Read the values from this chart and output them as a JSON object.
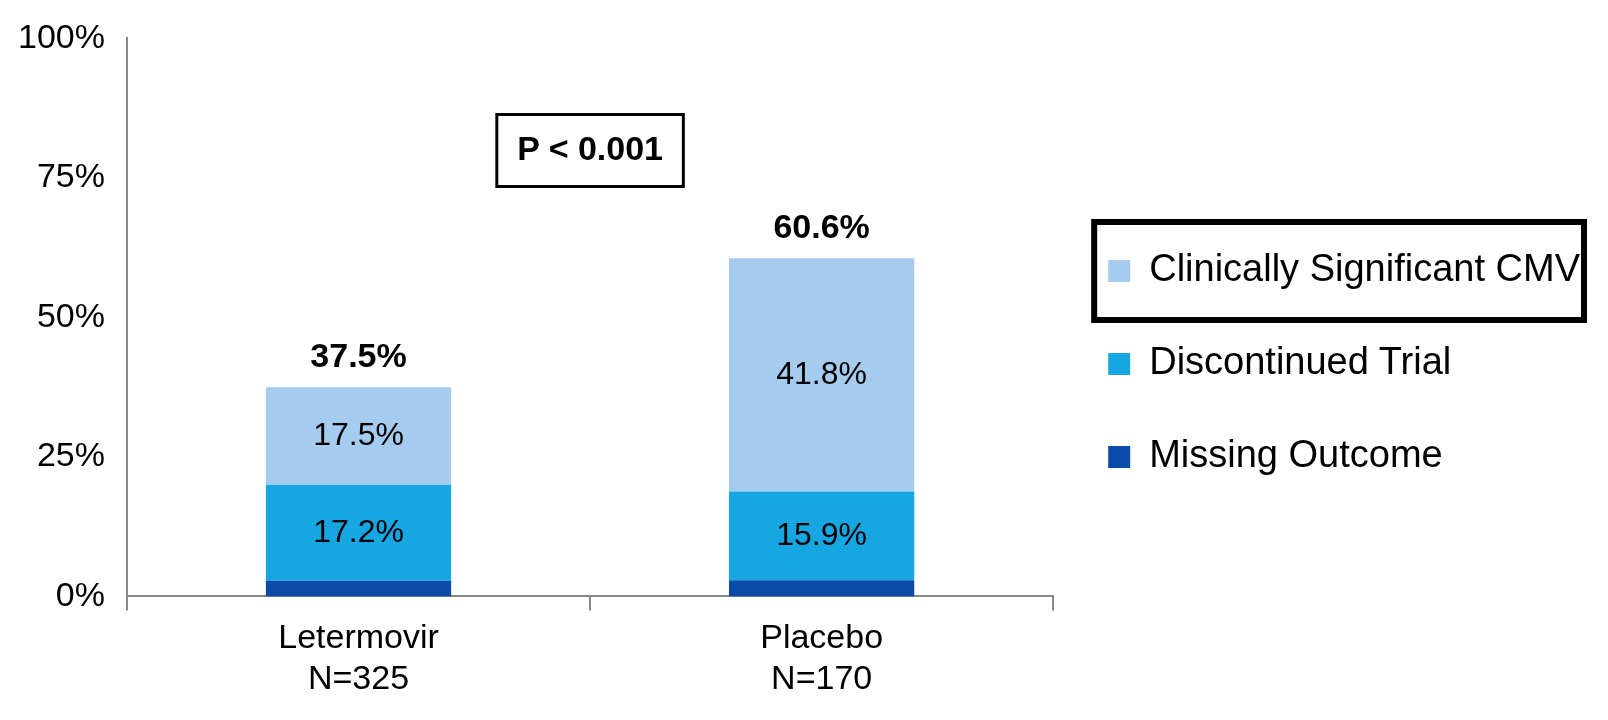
{
  "chart_data": {
    "type": "bar",
    "stacked": true,
    "categories": [
      "Letermovir\nN=325",
      "Placebo\nN=170"
    ],
    "series": [
      {
        "name": "Missing Outcome",
        "color": "#0a4aa8",
        "values": [
          2.8,
          2.9
        ],
        "value_labels": [
          null,
          null
        ]
      },
      {
        "name": "Discontinued Trial",
        "color": "#16a6e2",
        "values": [
          17.2,
          15.9
        ],
        "value_labels": [
          "17.2%",
          "15.9%"
        ]
      },
      {
        "name": "Clinically Significant CMV",
        "color": "#a5cbef",
        "values": [
          17.5,
          41.8
        ],
        "value_labels": [
          "17.5%",
          "41.8%"
        ]
      }
    ],
    "totals": [
      "37.5%",
      "60.6%"
    ],
    "ylim": [
      0,
      100
    ],
    "yticks": [
      {
        "value": 0,
        "label": "0%"
      },
      {
        "value": 25,
        "label": "25%"
      },
      {
        "value": 50,
        "label": "50%"
      },
      {
        "value": 75,
        "label": "75%"
      },
      {
        "value": 100,
        "label": "100%"
      }
    ],
    "legend": "right",
    "annotations": [
      "P < 0.001"
    ]
  }
}
